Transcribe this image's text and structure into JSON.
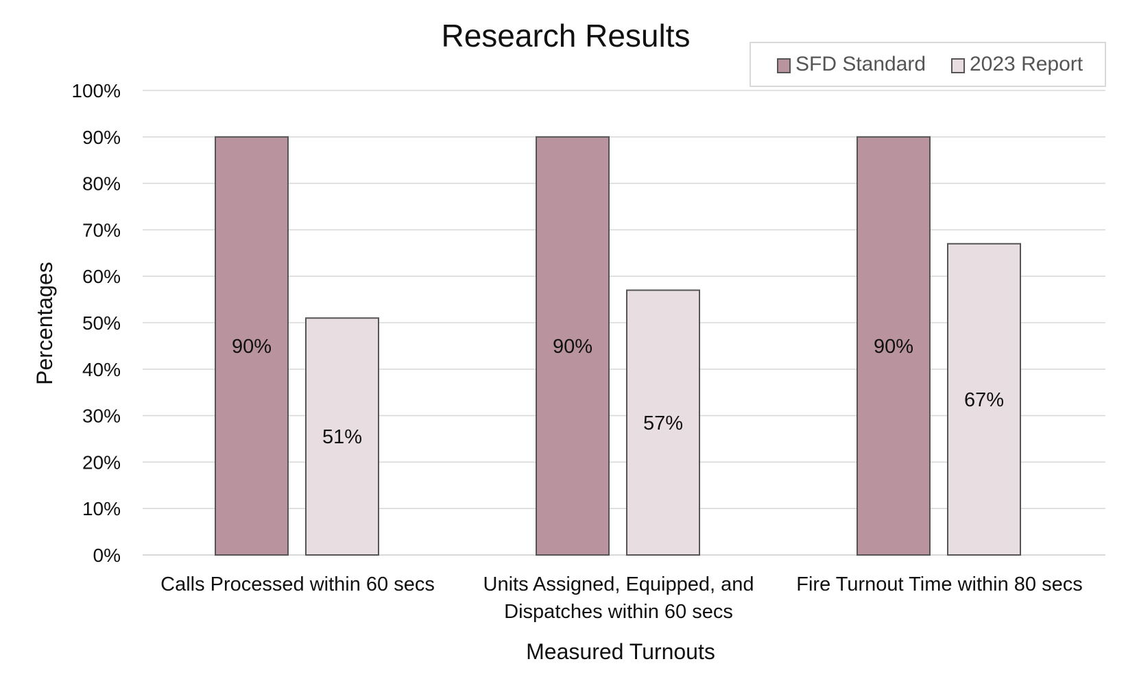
{
  "chart_data": {
    "type": "bar",
    "title": "Research Results",
    "xlabel": "Measured Turnouts",
    "ylabel": "Percentages",
    "categories": [
      [
        "Calls Processed within 60 secs"
      ],
      [
        "Units Assigned, Equipped, and",
        "Dispatches within 60 secs"
      ],
      [
        "Fire Turnout Time within 80 secs"
      ]
    ],
    "series": [
      {
        "name": "SFD Standard",
        "values": [
          90,
          90,
          90
        ],
        "labels": [
          "90%",
          "90%",
          "90%"
        ],
        "color": "#b9949f"
      },
      {
        "name": "2023 Report",
        "values": [
          51,
          57,
          67
        ],
        "labels": [
          "51%",
          "57%",
          "67%"
        ],
        "color": "#e8dde0"
      }
    ],
    "ylim": [
      0,
      100
    ],
    "yticks": [
      "0%",
      "10%",
      "20%",
      "30%",
      "40%",
      "50%",
      "60%",
      "70%",
      "80%",
      "90%",
      "100%"
    ],
    "grid": true,
    "legend_position": "top-right",
    "bar_outline_color": "#555555",
    "grid_color": "#d9d9d9"
  }
}
